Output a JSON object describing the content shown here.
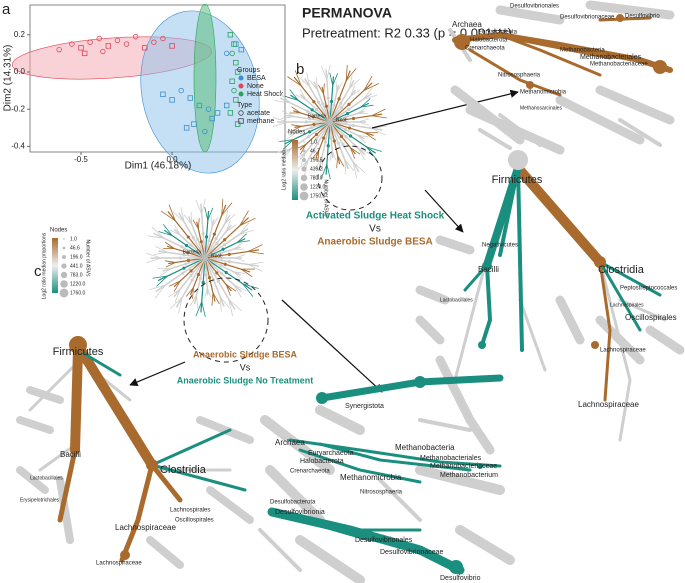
{
  "chart_data": {
    "type": "scatter",
    "x_label": "Dim1 (46.18%)",
    "y_label": "Dim2 (14.31%)",
    "xlim": [
      -0.78,
      0.62
    ],
    "xticks": [
      -0.5,
      {
        "value": 0,
        "label": "0.0"
      }
    ],
    "ylim": [
      -0.43,
      0.36
    ],
    "yticks": [
      0.2,
      {
        "value": 0,
        "label": "0.0"
      },
      -0.2,
      -0.4
    ],
    "legend_title": "Groups",
    "type_title": "Type",
    "types": [
      "acetate",
      "methane"
    ],
    "legend": "right",
    "series": [
      {
        "name": "BESA",
        "color": "#3b8fd0",
        "x": [
          -0.05,
          0.0,
          0.05,
          0.1,
          0.15,
          0.2,
          0.25,
          0.3,
          0.12,
          0.18,
          0.22,
          0.35,
          0.38,
          0.3,
          0.08
        ],
        "values": [
          -0.12,
          -0.15,
          -0.1,
          -0.14,
          -0.18,
          -0.2,
          -0.22,
          -0.18,
          -0.28,
          -0.32,
          -0.25,
          0.15,
          0.12,
          0.1,
          -0.3
        ],
        "type": [
          "methane",
          "methane",
          "acetate",
          "methane",
          "methane",
          "acetate",
          "methane",
          "methane",
          "methane",
          "acetate",
          "methane",
          "methane",
          "methane",
          "acetate",
          "methane"
        ]
      },
      {
        "name": "None",
        "color": "#e0475a",
        "x": [
          -0.62,
          -0.55,
          -0.5,
          -0.45,
          -0.4,
          -0.35,
          -0.3,
          -0.25,
          -0.2,
          -0.15,
          -0.1,
          -0.05,
          0.0,
          -0.48,
          -0.38
        ],
        "values": [
          0.12,
          0.15,
          0.13,
          0.16,
          0.18,
          0.14,
          0.17,
          0.15,
          0.19,
          0.13,
          0.16,
          0.18,
          0.14,
          0.1,
          0.11
        ],
        "type": [
          "acetate",
          "acetate",
          "methane",
          "acetate",
          "acetate",
          "methane",
          "acetate",
          "acetate",
          "acetate",
          "methane",
          "acetate",
          "acetate",
          "methane",
          "methane",
          "acetate"
        ]
      },
      {
        "name": "Heat Shock",
        "color": "#2ca25f",
        "x": [
          0.32,
          0.34,
          0.33,
          0.35,
          0.36,
          0.33,
          0.34,
          0.35,
          0.32,
          0.36
        ],
        "values": [
          0.2,
          0.15,
          0.1,
          0.05,
          0.0,
          -0.05,
          -0.1,
          -0.15,
          -0.22,
          -0.28
        ],
        "type": [
          "methane",
          "methane",
          "acetate",
          "methane",
          "methane",
          "methane",
          "acetate",
          "methane",
          "methane",
          "methane"
        ]
      }
    ]
  },
  "figure": {
    "panel_labels": [
      "a",
      "b",
      "c"
    ],
    "permanova": {
      "title": "PERMANOVA",
      "result": "Pretreatment: R2 0.33 (p = 0.001***)"
    },
    "comparison_b": [
      "Activated Sludge Heat Shock",
      "Vs",
      "Anaerobic Sludge BESA"
    ],
    "comparison_c": [
      "Anaerobic Sludge BESA",
      "Vs",
      "Anaerobic Sludge No Treatment"
    ],
    "legend_b": {
      "nodes_title": "Nodes",
      "color_title": "Log2 ratio median",
      "size_title": "Number of ASVs",
      "size_ticks": [
        "1.0",
        "46.7",
        "196.5",
        "439.2",
        "780.0",
        "1220.0",
        "1750.0"
      ]
    },
    "legend_c": {
      "nodes_title": "Nodes",
      "color_title": "Log2 ratio median proportions",
      "size_title": "Number of ASVs",
      "size_ticks": [
        "1.0",
        "46.6",
        "196.0",
        "441.0",
        "783.0",
        "1220.0",
        "1760.0"
      ]
    },
    "tree_b": [
      "Bacteria",
      "Root"
    ],
    "tree_c": [
      "Bacteria",
      "Root"
    ],
    "zoom_b_archaea": [
      "Desulfovibrionales",
      "Desulfovibrionaceae",
      "Desulfovibrio",
      "Archaea",
      "Euryarchaeota",
      "Halobacterota",
      "Crenarchaeota",
      "Methanobacteria",
      "Methanobacteriales",
      "Methanobacteriaceae",
      "Nitrososphaeria",
      "Methanomicrobia",
      "Methanosarcinales"
    ],
    "zoom_b_firmicutes": [
      "Firmicutes",
      "Negativicutes",
      "Bacilli",
      "Lactobacillales",
      "Clostridia",
      "Peptostreptococcales",
      "Oscillospirales",
      "Lachnospirales",
      "Lachnospiraceae",
      "Lachnospiraceae"
    ],
    "zoom_c_firmicutes": [
      "Firmicutes",
      "Bacilli",
      "Lactobacillales",
      "Erysipelotrichales",
      "Clostridia",
      "Lachnospirales",
      "Oscillospirales",
      "Lachnospiraceae",
      "Lachnospiraceae"
    ],
    "zoom_c_archaea": [
      "Synergistota",
      "Archaea",
      "Euryarchaeota",
      "Halobacterota",
      "Crenarchaeota",
      "Methanobacteria",
      "Methanobacteriales",
      "Methanobacteriaceae",
      "Methanobacterium",
      "Methanomicrobia",
      "Nitrososphaeria",
      "Desulfobacterota",
      "Desulfovibrionia",
      "Desulfovibrionales",
      "Desulfovibrionaceae",
      "Desulfovibrio"
    ]
  }
}
